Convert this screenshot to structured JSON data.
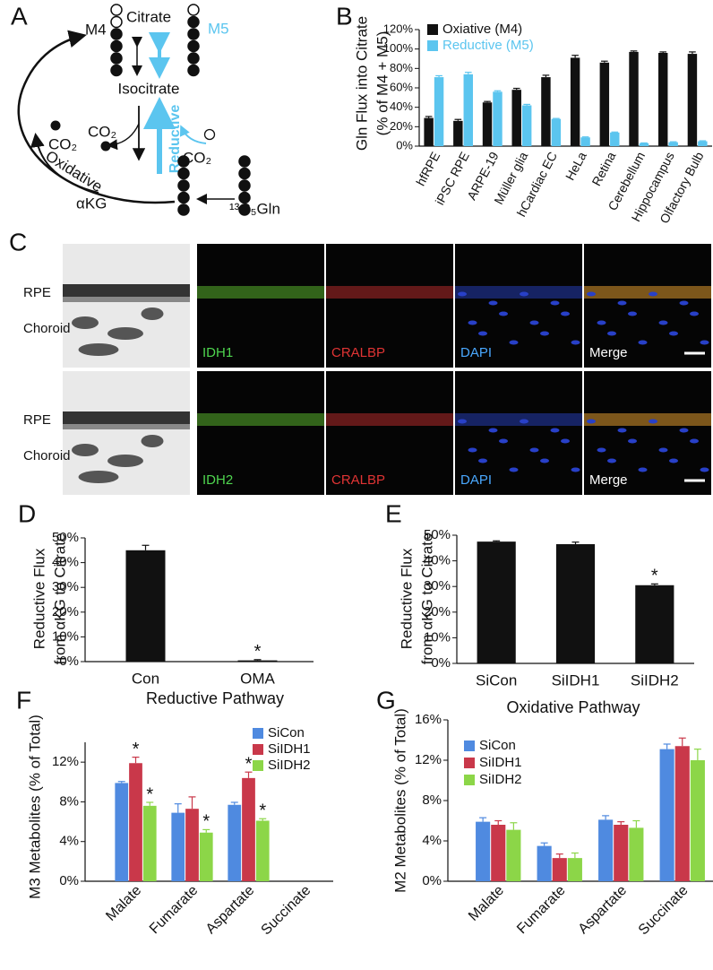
{
  "panels": [
    "A",
    "B",
    "C",
    "D",
    "E",
    "F",
    "G"
  ],
  "diagram": {
    "m4": "M4",
    "citrate": "Citrate",
    "m5": "M5",
    "isocitrate": "Isocitrate",
    "co2": "CO₂",
    "reductive": "Reductive",
    "oxidative": "Oxidative",
    "akg": "αKG",
    "gln": "¹³C₅Gln"
  },
  "micrographs": {
    "rows": [
      {
        "layers": [
          "RPE",
          "Choroid"
        ],
        "channels": [
          "IDH1",
          "CRALBP",
          "DAPI",
          "Merge"
        ]
      },
      {
        "layers": [
          "RPE",
          "Choroid"
        ],
        "channels": [
          "IDH2",
          "CRALBP",
          "DAPI",
          "Merge"
        ]
      }
    ]
  },
  "chart_data": [
    {
      "type": "bar",
      "ylabel": [
        "Gln Flux into Citrate",
        "(% of M4 + M5)"
      ],
      "categories": [
        "hfRPE",
        "iPSC RPE",
        "ARPE-19",
        "Müller glia",
        "hCardiac EC",
        "HeLa",
        "Retina",
        "Cerebellum",
        "Hippocampus",
        "Olfactory Bulb"
      ],
      "series": [
        {
          "name": "Oxiative (M4)",
          "color": "#111111",
          "values": [
            29,
            26,
            45,
            58,
            71,
            91,
            86,
            97,
            96,
            95
          ],
          "errors": [
            1.5,
            1.5,
            1,
            1.5,
            2,
            2.5,
            1.5,
            1,
            1,
            2
          ]
        },
        {
          "name": "Reductive (M5)",
          "color": "#5bc5ef",
          "values": [
            71,
            74,
            56,
            42,
            28,
            9,
            14,
            3,
            4,
            5
          ],
          "errors": [
            1.5,
            2,
            1,
            1,
            0.5,
            0.5,
            0.5,
            0.3,
            0.5,
            0.5
          ]
        }
      ],
      "ylim": [
        0,
        120
      ],
      "yticks": [
        {
          "value": 0,
          "label": "0%"
        },
        {
          "value": 20,
          "label": "20%"
        },
        {
          "value": 40,
          "label": "40%"
        },
        {
          "value": 60,
          "label": "60%"
        },
        {
          "value": 80,
          "label": "80%"
        },
        {
          "value": 100,
          "label": "100%"
        },
        {
          "value": 120,
          "label": "120%"
        }
      ],
      "legend": "top-left"
    },
    {
      "type": "bar",
      "ylabel": [
        "Reductive Flux",
        "from αKG to Citrate"
      ],
      "categories": [
        "Con",
        "OMA"
      ],
      "values": [
        45,
        0.5
      ],
      "errors": [
        2,
        0.3
      ],
      "color": "#111111",
      "significant": [
        [
          false,
          true
        ]
      ],
      "sig_label": "*",
      "ylim": [
        0,
        50
      ],
      "yticks": [
        {
          "value": 0,
          "label": "0%"
        },
        {
          "value": 10,
          "label": "10%"
        },
        {
          "value": 20,
          "label": "20%"
        },
        {
          "value": 30,
          "label": "30%"
        },
        {
          "value": 40,
          "label": "40%"
        },
        {
          "value": 50,
          "label": "50%"
        }
      ]
    },
    {
      "type": "bar",
      "ylabel": [
        "Reductive Flux",
        "from αKG to Citrate"
      ],
      "categories": [
        "SiCon",
        "SiIDH1",
        "SiIDH2"
      ],
      "values": [
        47.5,
        46.5,
        30.5
      ],
      "errors": [
        0.3,
        0.8,
        0.5
      ],
      "color": "#111111",
      "significant": [
        [
          false,
          false,
          true
        ]
      ],
      "sig_label": "*",
      "ylim": [
        0,
        50
      ],
      "yticks": [
        {
          "value": 0,
          "label": "0%"
        },
        {
          "value": 10,
          "label": "10%"
        },
        {
          "value": 20,
          "label": "20%"
        },
        {
          "value": 30,
          "label": "30%"
        },
        {
          "value": 40,
          "label": "40%"
        },
        {
          "value": 50,
          "label": "50%"
        }
      ]
    },
    {
      "type": "bar",
      "title": "Reductive Pathway",
      "ylabel": [
        "M3 Metabolites (% of Total)"
      ],
      "categories": [
        "Malate",
        "Fumarate",
        "Aspartate",
        "Succinate"
      ],
      "series": [
        {
          "name": "SiCon",
          "color": "#4f8ae0",
          "values": [
            9.9,
            6.9,
            7.7,
            null
          ],
          "errors": [
            0.15,
            0.9,
            0.25,
            null
          ]
        },
        {
          "name": "SiIDH1",
          "color": "#c9384a",
          "values": [
            11.9,
            7.3,
            10.4,
            null
          ],
          "errors": [
            0.6,
            1.2,
            0.6,
            null
          ]
        },
        {
          "name": "SiIDH2",
          "color": "#8cd648",
          "values": [
            7.6,
            4.9,
            6.1,
            null
          ],
          "errors": [
            0.35,
            0.3,
            0.2,
            null
          ]
        }
      ],
      "significant": [
        [
          false,
          false,
          false,
          false
        ],
        [
          true,
          false,
          true,
          false
        ],
        [
          true,
          true,
          true,
          false
        ]
      ],
      "sig_label": "*",
      "ylim": [
        0,
        14
      ],
      "yticks": [
        {
          "value": 0,
          "label": "0%"
        },
        {
          "value": 4,
          "label": "4%"
        },
        {
          "value": 8,
          "label": "8%"
        },
        {
          "value": 12,
          "label": "12%"
        }
      ],
      "legend": "top-right"
    },
    {
      "type": "bar",
      "title": "Oxidative Pathway",
      "ylabel": [
        "M2 Metabolites (% of Total)"
      ],
      "categories": [
        "Malate",
        "Fumarate",
        "Aspartate",
        "Succinate"
      ],
      "series": [
        {
          "name": "SiCon",
          "color": "#4f8ae0",
          "values": [
            5.9,
            3.5,
            6.1,
            13.1
          ],
          "errors": [
            0.4,
            0.3,
            0.4,
            0.5
          ]
        },
        {
          "name": "SiIDH1",
          "color": "#c9384a",
          "values": [
            5.6,
            2.3,
            5.6,
            13.4
          ],
          "errors": [
            0.4,
            0.4,
            0.3,
            0.8
          ]
        },
        {
          "name": "SiIDH2",
          "color": "#8cd648",
          "values": [
            5.1,
            2.3,
            5.3,
            12.0
          ],
          "errors": [
            0.7,
            0.5,
            0.7,
            1.1
          ]
        }
      ],
      "ylim": [
        0,
        16
      ],
      "yticks": [
        {
          "value": 0,
          "label": "0%"
        },
        {
          "value": 4,
          "label": "4%"
        },
        {
          "value": 8,
          "label": "8%"
        },
        {
          "value": 12,
          "label": "12%"
        },
        {
          "value": 16,
          "label": "16%"
        }
      ],
      "legend": "top-left"
    }
  ]
}
